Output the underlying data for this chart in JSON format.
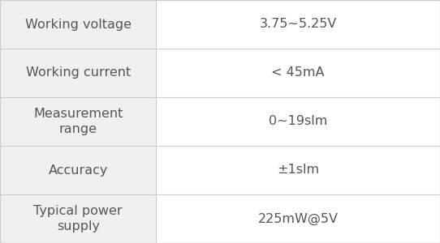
{
  "rows": [
    {
      "param": "Working voltage",
      "value": "3.75~5.25V"
    },
    {
      "param": "Working current",
      "value": "< 45mA"
    },
    {
      "param": "Measurement\nrange",
      "value": "0~19slm"
    },
    {
      "param": "Accuracy",
      "value": "±1slm"
    },
    {
      "param": "Typical power\nsupply",
      "value": "225mW@5V"
    }
  ],
  "col_split": 0.355,
  "text_color": "#555555",
  "border_color": "#cccccc",
  "left_bg": "#f0f0f0",
  "right_bg": "#ffffff",
  "font_size": 11.5,
  "fig_width": 5.42,
  "fig_height": 3.0,
  "dpi": 100
}
